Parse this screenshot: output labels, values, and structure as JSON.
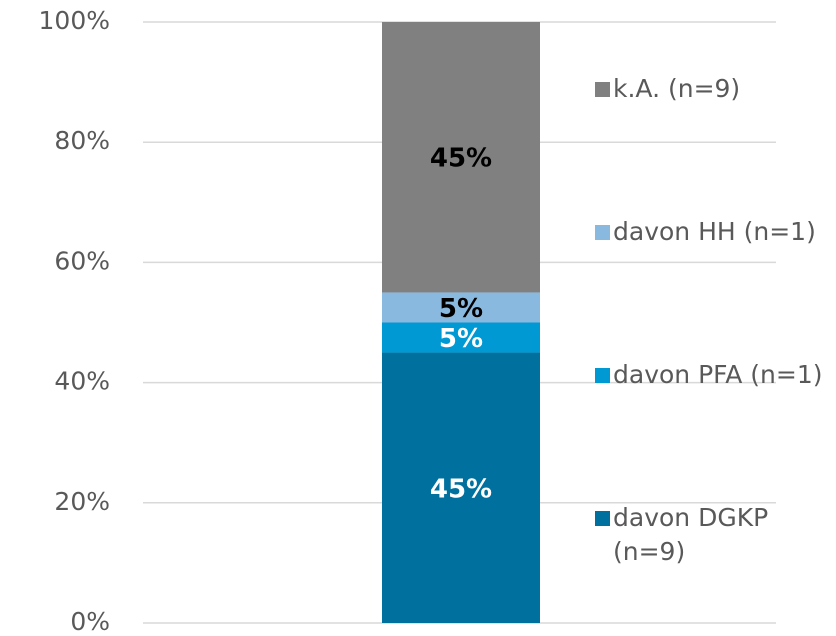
{
  "chart_data": {
    "type": "stacked_bar",
    "categories": [
      null
    ],
    "series": [
      {
        "name": "davon DGKP (n=9)",
        "color": "#00709e",
        "label_color": "#ffffff",
        "values": [
          45
        ],
        "value_labels": [
          "45%"
        ]
      },
      {
        "name": "davon PFA (n=1)",
        "color": "#0099d4",
        "label_color": "#ffffff",
        "values": [
          5
        ],
        "value_labels": [
          "5%"
        ]
      },
      {
        "name": "davon HH (n=1)",
        "color": "#8ab9e0",
        "label_color": "#000000",
        "values": [
          5
        ],
        "value_labels": [
          "5%"
        ]
      },
      {
        "name": "k.A. (n=9)",
        "color": "#808080",
        "label_color": "#000000",
        "values": [
          45
        ],
        "value_labels": [
          "45%"
        ]
      }
    ],
    "ylim": [
      0,
      100
    ],
    "yticks": [
      {
        "value": 0,
        "label": "0%"
      },
      {
        "value": 20,
        "label": "20%"
      },
      {
        "value": 40,
        "label": "40%"
      },
      {
        "value": 60,
        "label": "60%"
      },
      {
        "value": 80,
        "label": "80%"
      },
      {
        "value": 100,
        "label": "100%"
      }
    ],
    "grid": true,
    "legend": "right"
  }
}
